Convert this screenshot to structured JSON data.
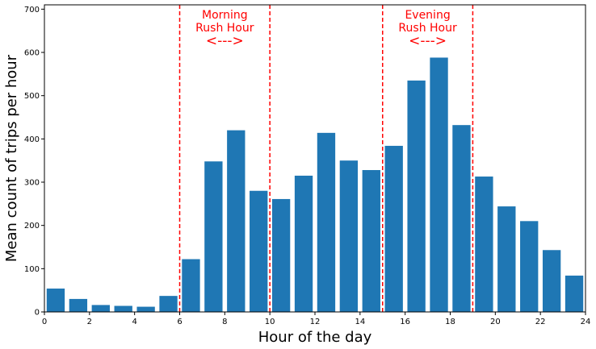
{
  "chart_data": {
    "type": "bar",
    "xlabel": "Hour of the day",
    "ylabel": "Mean count of trips per hour",
    "xlim": [
      0,
      24
    ],
    "ylim": [
      0,
      710
    ],
    "x_ticks": [
      0,
      2,
      4,
      6,
      8,
      10,
      12,
      14,
      16,
      18,
      20,
      22,
      24
    ],
    "y_ticks": [
      0,
      100,
      200,
      300,
      400,
      500,
      600,
      700
    ],
    "grid": false,
    "bar_color": "#1f77b4",
    "x": [
      0,
      1,
      2,
      3,
      4,
      5,
      6,
      7,
      8,
      9,
      10,
      11,
      12,
      13,
      14,
      15,
      16,
      17,
      18,
      19,
      20,
      21,
      22,
      23
    ],
    "values": [
      54,
      30,
      16,
      14,
      12,
      37,
      122,
      348,
      420,
      280,
      261,
      315,
      414,
      350,
      328,
      384,
      535,
      588,
      432,
      313,
      244,
      210,
      143,
      84
    ],
    "vlines": {
      "x": [
        6,
        10,
        15,
        19
      ],
      "color": "#ff0000",
      "style": "dashed"
    },
    "annotations": [
      {
        "lines": [
          "Morning",
          "Rush Hour"
        ],
        "arrow": "<--->",
        "x_center": 8
      },
      {
        "lines": [
          "Evening",
          "Rush Hour"
        ],
        "arrow": "<--->",
        "x_center": 17
      }
    ]
  }
}
